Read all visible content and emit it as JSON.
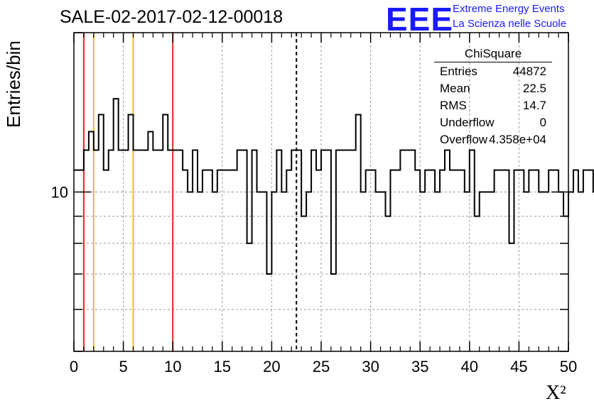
{
  "title": "SALE-02-2017-02-12-00018",
  "logo": {
    "mark": "EEE",
    "line1": "Extreme Energy Events",
    "line2": "La Scienza nelle Scuole"
  },
  "stats": {
    "header": "ChiSquare",
    "rows": [
      {
        "key": "Entries",
        "value": "44872"
      },
      {
        "key": "Mean",
        "value": "22.5"
      },
      {
        "key": "RMS",
        "value": "14.7"
      },
      {
        "key": "Underflow",
        "value": "0"
      },
      {
        "key": "Overflow",
        "value": "4.358e+04"
      }
    ]
  },
  "chart_data": {
    "type": "histogram",
    "xlabel": "X²",
    "ylabel": "Entries/bin",
    "xlim": [
      0,
      50
    ],
    "ylim": [
      5,
      20
    ],
    "yscale": "log",
    "grid": true,
    "x_ticks": [
      0,
      5,
      10,
      15,
      20,
      25,
      30,
      35,
      40,
      45,
      50
    ],
    "y_tick_labels": [
      {
        "value": 10,
        "label": "10"
      }
    ],
    "bin_width": 0.5,
    "values": [
      11,
      11,
      12,
      13,
      12,
      14,
      11,
      12,
      15,
      12,
      12,
      14,
      12,
      12,
      12,
      13,
      12,
      12,
      14,
      12,
      12,
      12,
      11,
      10,
      12,
      10,
      11,
      11,
      10,
      11,
      11,
      11,
      11,
      12,
      12,
      8,
      12,
      10,
      10,
      7,
      10,
      12,
      10,
      11,
      12,
      12,
      9,
      10,
      12,
      11,
      12,
      12,
      7,
      12,
      12,
      12,
      12,
      14,
      10,
      11,
      11,
      10,
      10,
      9,
      11,
      11,
      12,
      12,
      12,
      11,
      10,
      11,
      11,
      10,
      11,
      12,
      11,
      11,
      11,
      10,
      12,
      9,
      10,
      10,
      10,
      11,
      11,
      11,
      8,
      11,
      11,
      10,
      11,
      11,
      10,
      10,
      11,
      11,
      10,
      9,
      10,
      11,
      10,
      11,
      11,
      10,
      11,
      10,
      10,
      9,
      10,
      10,
      10,
      10,
      9,
      10,
      9,
      10,
      10,
      10,
      10,
      11,
      10,
      10,
      10,
      11,
      13,
      13,
      12,
      11,
      11,
      10,
      10,
      9,
      11,
      10,
      11,
      10,
      10,
      11,
      11,
      11,
      12,
      12,
      11,
      10,
      12,
      13,
      11,
      11,
      9,
      11,
      11,
      10,
      12,
      13,
      12,
      11,
      10,
      10,
      10,
      12,
      12,
      11,
      10,
      11,
      10,
      12,
      11,
      10,
      11,
      10,
      9,
      11,
      9,
      10,
      10,
      10,
      10,
      7,
      8,
      8,
      9,
      10,
      12,
      10,
      10,
      10,
      10,
      10
    ],
    "vertical_lines": [
      {
        "x": 1,
        "color": "#e8241e",
        "style": "solid"
      },
      {
        "x": 2,
        "color": "#f2c01c",
        "style": "solid"
      },
      {
        "x": 6,
        "color": "#f2c01c",
        "style": "solid"
      },
      {
        "x": 10,
        "color": "#e8241e",
        "style": "solid"
      },
      {
        "x": 22.5,
        "color": "#000000",
        "style": "dashed"
      }
    ]
  }
}
